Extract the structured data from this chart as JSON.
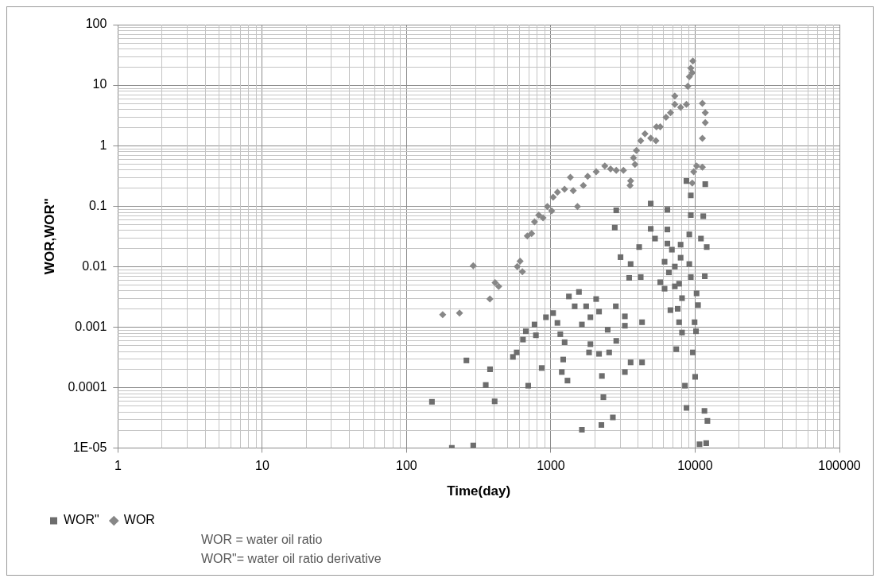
{
  "chart_data": {
    "type": "scatter",
    "xlabel": "Time(day)",
    "ylabel": "WOR,WOR\"",
    "log": "xy",
    "grid": true,
    "legend": "bottom left",
    "xlim": [
      1,
      100000
    ],
    "xticks": [
      1,
      10,
      100,
      1000,
      10000,
      100000
    ],
    "ylim": [
      1e-05,
      100
    ],
    "yticks": [
      {
        "value": 1e-05,
        "label": "1E-05"
      },
      {
        "value": 0.0001,
        "label": "0.0001"
      },
      {
        "value": 0.001,
        "label": "0.001"
      },
      {
        "value": 0.01,
        "label": "0.01"
      },
      {
        "value": 0.1,
        "label": "0.1"
      },
      {
        "value": 1,
        "label": "1"
      },
      {
        "value": 10,
        "label": "10"
      },
      {
        "value": 100,
        "label": "100"
      }
    ],
    "series": [
      {
        "name": "WOR\"",
        "color": "#6d6d6d",
        "marker": "square",
        "x": [
          150,
          206,
          290,
          260,
          379,
          354,
          408,
          546,
          580,
          641,
          671,
          697,
          771,
          788,
          864,
          925,
          1037,
          1111,
          1163,
          1246,
          1218,
          1191,
          1304,
          1334,
          1566,
          1463,
          1641,
          1757,
          1880,
          2061,
          2158,
          1880,
          1840,
          2158,
          2477,
          2535,
          2840,
          2259,
          2312,
          1641,
          2240,
          2690,
          2820,
          3258,
          3258,
          3258,
          3572,
          4286,
          4286,
          2840,
          2773,
          3040,
          3572,
          3490,
          4093,
          4196,
          4921,
          4921,
          5272,
          6420,
          6420,
          6420,
          6900,
          7930,
          6140,
          6580,
          7230,
          7930,
          5730,
          6140,
          7230,
          7740,
          8110,
          6740,
          7570,
          7740,
          8110,
          7400,
          9330,
          9110,
          9110,
          9330,
          9330,
          8700,
          11750,
          11380,
          10970,
          12030,
          11660,
          10230,
          10470,
          9910,
          10140,
          9640,
          10000,
          8500,
          8710,
          11600,
          12160,
          10720,
          11930
        ],
        "values": [
          5.8e-05,
          1e-05,
          1.1e-05,
          0.00028,
          0.0002,
          0.00011,
          5.9e-05,
          0.00032,
          0.00038,
          0.00062,
          0.00085,
          0.000107,
          0.0011,
          0.00073,
          0.00021,
          0.00145,
          0.0017,
          0.00117,
          0.00076,
          0.00056,
          0.00029,
          0.00018,
          0.00013,
          0.0032,
          0.0038,
          0.0022,
          0.0011,
          0.0022,
          0.00145,
          0.0029,
          0.0018,
          0.00052,
          0.00038,
          0.00036,
          0.0009,
          0.00038,
          0.00059,
          0.000155,
          6.9e-05,
          2e-05,
          2.4e-05,
          3.2e-05,
          0.0022,
          0.00105,
          0.0015,
          0.00018,
          0.00026,
          0.00026,
          0.0012,
          0.085,
          0.044,
          0.0143,
          0.011,
          0.0065,
          0.021,
          0.0067,
          0.11,
          0.042,
          0.029,
          0.087,
          0.041,
          0.024,
          0.019,
          0.023,
          0.012,
          0.008,
          0.01,
          0.014,
          0.0055,
          0.0043,
          0.0047,
          0.0052,
          0.003,
          0.0019,
          0.002,
          0.0012,
          0.00081,
          0.00043,
          0.0067,
          0.011,
          0.034,
          0.071,
          0.15,
          0.26,
          0.23,
          0.068,
          0.029,
          0.021,
          0.0069,
          0.0036,
          0.0023,
          0.0012,
          0.00085,
          0.00038,
          0.00015,
          0.000107,
          4.6e-05,
          4.1e-05,
          2.8e-05,
          1.15e-05,
          1.2e-05
        ]
      },
      {
        "name": "WOR",
        "color": "#878787",
        "marker": "diamond",
        "x": [
          178,
          233,
          290,
          378,
          411,
          435,
          585,
          635,
          612,
          687,
          736,
          771,
          825,
          883,
          946,
          1014,
          1037,
          1111,
          1245,
          1366,
          1430,
          1530,
          1679,
          1799,
          2062,
          2366,
          2593,
          2840,
          3185,
          3573,
          3540,
          3828,
          3740,
          3918,
          4197,
          4490,
          4921,
          5395,
          5350,
          5730,
          6280,
          6750,
          7230,
          7230,
          7930,
          8700,
          8900,
          9110,
          9330,
          9640,
          9550,
          11220,
          11750,
          11750,
          11220,
          10240,
          9770,
          9550,
          11220
        ],
        "values": [
          0.0016,
          0.0017,
          0.0103,
          0.0029,
          0.0054,
          0.0047,
          0.01,
          0.0082,
          0.0123,
          0.032,
          0.035,
          0.055,
          0.071,
          0.064,
          0.098,
          0.083,
          0.14,
          0.17,
          0.19,
          0.3,
          0.18,
          0.098,
          0.22,
          0.31,
          0.37,
          0.46,
          0.41,
          0.39,
          0.39,
          0.26,
          0.22,
          0.49,
          0.63,
          0.83,
          1.2,
          1.57,
          1.33,
          2.04,
          1.2,
          2.05,
          2.95,
          3.5,
          6.6,
          4.8,
          4.3,
          4.8,
          9.6,
          13.8,
          19,
          25,
          16,
          5,
          3.5,
          2.4,
          1.32,
          0.46,
          0.37,
          0.24,
          0.44
        ]
      }
    ],
    "annotations": [
      "WOR = water oil ratio",
      "WOR\"=  water oil ratio derivative"
    ]
  }
}
